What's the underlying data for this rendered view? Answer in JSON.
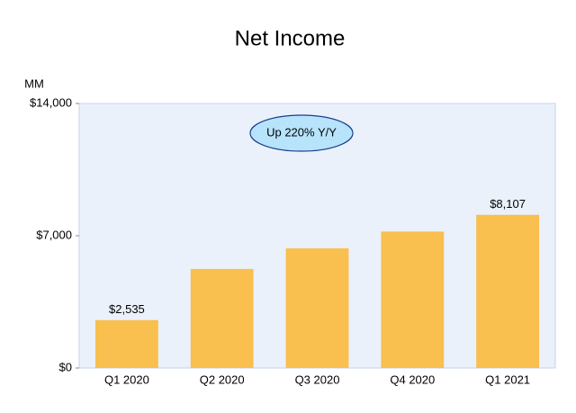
{
  "chart_data": {
    "type": "bar",
    "title": "Net Income",
    "y_label": "MM",
    "categories": [
      "Q1 2020",
      "Q2 2020",
      "Q3 2020",
      "Q4 2020",
      "Q1 2021"
    ],
    "values": [
      2535,
      5243,
      6331,
      7222,
      8107
    ],
    "value_labels": [
      "$2,535",
      null,
      null,
      null,
      "$8,107"
    ],
    "color": "#f9bf4f",
    "ylim": [
      0,
      14000
    ],
    "yticks": [
      {
        "value": 0,
        "label": "$0"
      },
      {
        "value": 7000,
        "label": "$7,000"
      },
      {
        "value": 14000,
        "label": "$14,000"
      }
    ],
    "annotation": "Up 220% Y/Y"
  }
}
